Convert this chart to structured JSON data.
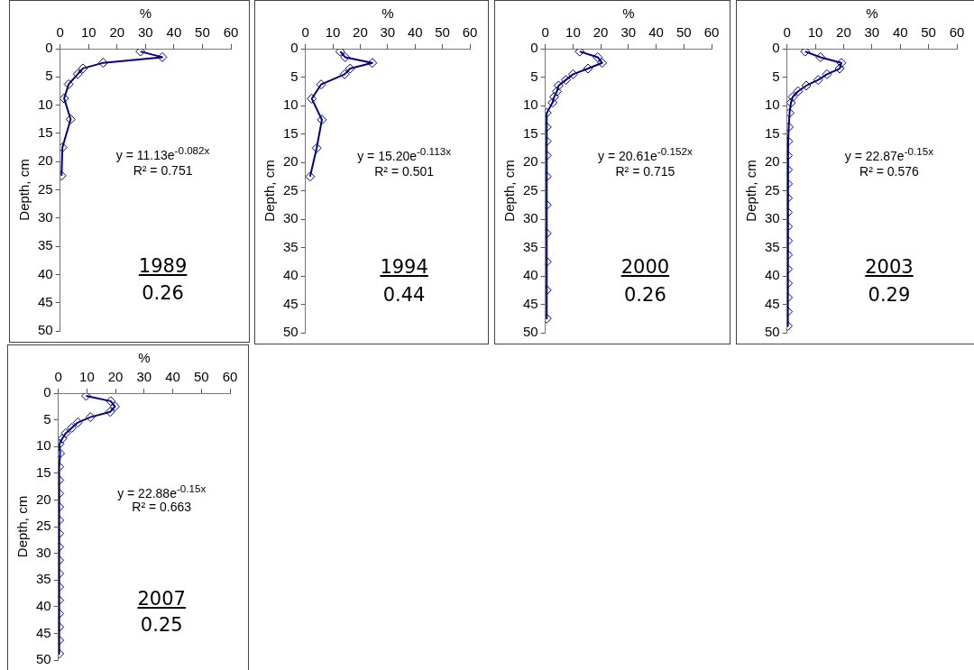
{
  "chart_data": [
    {
      "type": "line",
      "xlabel": "%",
      "ylabel": "Depth, cm",
      "xlim": [
        0,
        60
      ],
      "xticks": [
        0,
        10,
        20,
        30,
        40,
        50,
        60
      ],
      "ylim": [
        50,
        0
      ],
      "yticks": [
        0,
        5,
        10,
        15,
        20,
        25,
        30,
        35,
        40,
        45,
        50
      ],
      "grid": false,
      "legend": false,
      "marker": "diamond",
      "line_style": "solid",
      "series": [
        {
          "color": "#000080",
          "x": [
            28.2,
            35.9,
            15.1,
            8.0,
            6.2,
            3.0,
            1.4,
            3.7,
            0.8,
            0.5
          ],
          "values": [
            0.5,
            1.5,
            2.5,
            3.5,
            4.5,
            6.3,
            8.8,
            12.5,
            17.5,
            22.5
          ]
        }
      ],
      "annotations": [
        "y = 11.13e$^{-0.082x}$",
        "R² = 0.751",
        "1989",
        "0.26"
      ]
    },
    {
      "type": "line",
      "xlabel": "%",
      "ylabel": "Depth, cm",
      "xlim": [
        0,
        60
      ],
      "xticks": [
        0,
        10,
        20,
        30,
        40,
        50,
        60
      ],
      "ylim": [
        50,
        0
      ],
      "yticks": [
        0,
        5,
        10,
        15,
        20,
        25,
        30,
        35,
        40,
        45,
        50
      ],
      "grid": false,
      "legend": false,
      "marker": "diamond",
      "line_style": "solid",
      "series": [
        {
          "color": "#000080",
          "x": [
            12.7,
            14.5,
            24.4,
            16.3,
            14.3,
            5.7,
            2.3,
            6.0,
            4.1,
            1.7
          ],
          "values": [
            0.5,
            1.5,
            2.5,
            3.5,
            4.5,
            6.3,
            8.8,
            12.5,
            17.5,
            22.5
          ]
        }
      ],
      "annotations": [
        "y = 15.20e$^{-0.113x}$",
        "R² = 0.501",
        "1994",
        "0.44"
      ]
    },
    {
      "type": "line",
      "xlabel": "%",
      "ylabel": "Depth, cm",
      "xlim": [
        0,
        60
      ],
      "xticks": [
        0,
        10,
        20,
        30,
        40,
        50,
        60
      ],
      "ylim": [
        50,
        0
      ],
      "yticks": [
        0,
        5,
        10,
        15,
        20,
        25,
        30,
        35,
        40,
        45,
        50
      ],
      "grid": false,
      "legend": false,
      "marker": "diamond",
      "line_style": "solid",
      "series": [
        {
          "color": "#000080",
          "x": [
            12.4,
            18.9,
            20.5,
            15.4,
            10.0,
            7.4,
            4.8,
            4.2,
            3.2,
            2.6,
            0.5,
            0.5,
            0.5,
            0.5,
            0.5,
            0.5,
            0.5,
            0.5,
            0.5,
            0.5
          ],
          "values": [
            0.5,
            1.5,
            2.5,
            3.5,
            4.5,
            5.5,
            6.5,
            7.5,
            8.5,
            9.5,
            11.3,
            13.8,
            16.3,
            18.8,
            22.5,
            27.5,
            32.5,
            37.5,
            42.5,
            47.5
          ]
        }
      ],
      "annotations": [
        "y = 20.61e$^{-0.152x}$",
        "R² = 0.715",
        "2000",
        "0.26"
      ]
    },
    {
      "type": "line",
      "xlabel": "%",
      "ylabel": "Depth, cm",
      "xlim": [
        0,
        60
      ],
      "xticks": [
        0,
        10,
        20,
        30,
        40,
        50,
        60
      ],
      "ylim": [
        50,
        0
      ],
      "yticks": [
        0,
        5,
        10,
        15,
        20,
        25,
        30,
        35,
        40,
        45,
        50
      ],
      "grid": false,
      "legend": false,
      "marker": "diamond",
      "line_style": "solid",
      "series": [
        {
          "color": "#000080",
          "x": [
            6.4,
            11.8,
            19.2,
            18.6,
            14.1,
            11.0,
            6.8,
            3.9,
            2.0,
            1.4,
            0.9,
            0.6,
            0.4,
            0.3,
            0.3,
            0.3,
            0.3,
            0.3,
            0.3,
            0.3,
            0.3,
            0.3,
            0.3,
            0.3,
            0.3,
            0.3
          ],
          "values": [
            0.5,
            1.5,
            2.5,
            3.5,
            4.5,
            5.5,
            6.5,
            7.5,
            8.5,
            9.5,
            11.3,
            13.8,
            16.3,
            18.8,
            21.3,
            23.8,
            26.3,
            28.8,
            31.3,
            33.8,
            36.3,
            38.8,
            41.3,
            43.8,
            46.3,
            48.8
          ]
        }
      ],
      "annotations": [
        "y = 22.87e$^{-0.15x}$",
        "R² = 0.576",
        "2003",
        "0.29"
      ]
    },
    {
      "type": "line",
      "xlabel": "%",
      "ylabel": "Depth, cm",
      "xlim": [
        0,
        60
      ],
      "xticks": [
        0,
        10,
        20,
        30,
        40,
        50,
        60
      ],
      "ylim": [
        50,
        0
      ],
      "yticks": [
        0,
        5,
        10,
        15,
        20,
        25,
        30,
        35,
        40,
        45,
        50
      ],
      "grid": false,
      "legend": false,
      "marker": "diamond",
      "line_style": "solid",
      "series": [
        {
          "color": "#000080",
          "x": [
            9.7,
            18.3,
            19.8,
            18.1,
            11.2,
            6.8,
            4.7,
            2.6,
            1.4,
            0.4,
            0.6,
            0.3,
            0.3,
            0.3,
            0.3,
            0.3,
            0.3,
            0.3,
            0.3,
            0.3,
            0.3,
            0.3,
            0.3,
            0.3,
            0.3,
            0.3
          ],
          "values": [
            0.5,
            1.5,
            2.5,
            3.5,
            4.5,
            5.5,
            6.5,
            7.5,
            8.5,
            9.5,
            11.3,
            13.8,
            16.3,
            18.8,
            21.3,
            23.8,
            26.3,
            28.8,
            31.3,
            33.8,
            36.3,
            38.8,
            41.3,
            43.8,
            46.3,
            48.8
          ]
        }
      ],
      "annotations": [
        "y = 22.88e$^{-0.15x}$",
        "R² = 0.663",
        "2007",
        "0.25"
      ]
    }
  ]
}
